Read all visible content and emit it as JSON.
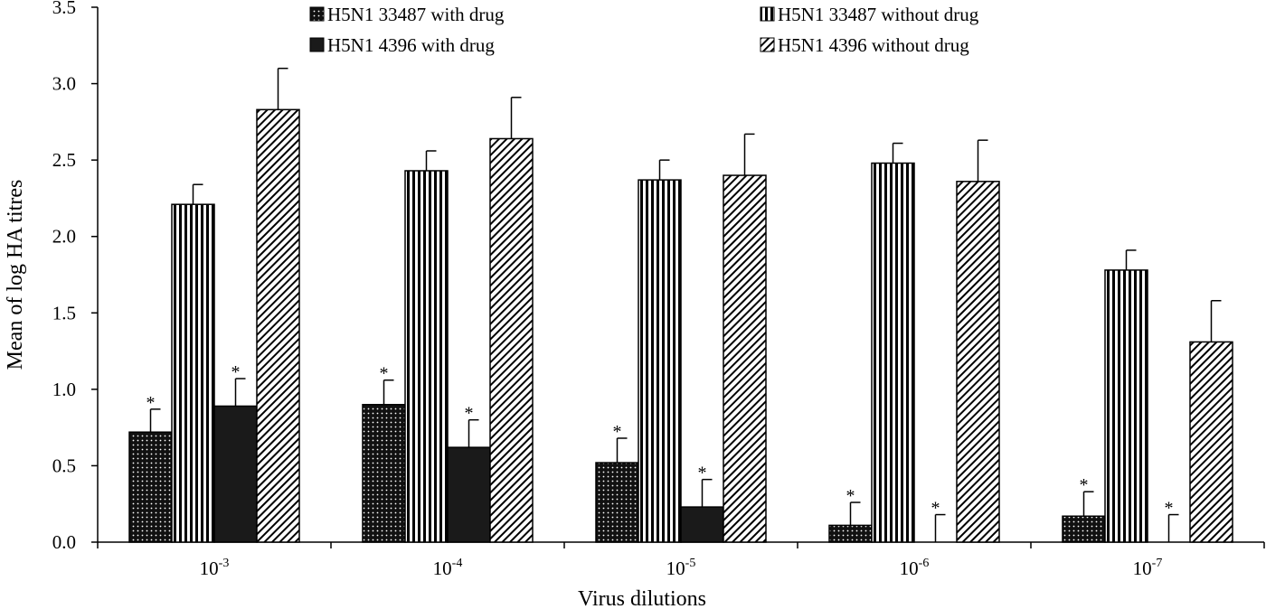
{
  "chart_data": {
    "type": "bar",
    "xlabel": "Virus dilutions",
    "ylabel": "Mean of log HA titres",
    "ylim": [
      0,
      3.5
    ],
    "yticks": [
      "0.0",
      "0.5",
      "1.0",
      "1.5",
      "2.0",
      "2.5",
      "3.0",
      "3.5"
    ],
    "categories": [
      {
        "base": "10",
        "exp": "-3"
      },
      {
        "base": "10",
        "exp": "-4"
      },
      {
        "base": "10",
        "exp": "-5"
      },
      {
        "base": "10",
        "exp": "-6"
      },
      {
        "base": "10",
        "exp": "-7"
      }
    ],
    "legend_position": "top",
    "series": [
      {
        "name": "H5N1 33487 with drug",
        "pattern": "dots",
        "values": [
          0.72,
          0.9,
          0.52,
          0.11,
          0.17
        ],
        "errors": [
          0.15,
          0.16,
          0.16,
          0.15,
          0.16
        ],
        "significant": [
          true,
          true,
          true,
          true,
          true
        ]
      },
      {
        "name": "H5N1 33487 without drug",
        "pattern": "vertical-stripes",
        "values": [
          2.21,
          2.43,
          2.37,
          2.48,
          1.78
        ],
        "errors": [
          0.13,
          0.13,
          0.13,
          0.13,
          0.13
        ],
        "significant": [
          false,
          false,
          false,
          false,
          false
        ]
      },
      {
        "name": "H5N1 4396 with drug",
        "pattern": "solid",
        "values": [
          0.89,
          0.62,
          0.23,
          0.0,
          0.0
        ],
        "errors": [
          0.18,
          0.18,
          0.18,
          0.18,
          0.18
        ],
        "significant": [
          true,
          true,
          true,
          true,
          true
        ]
      },
      {
        "name": "H5N1 4396 without drug",
        "pattern": "diagonal-stripes",
        "values": [
          2.83,
          2.64,
          2.4,
          2.36,
          1.31
        ],
        "errors": [
          0.27,
          0.27,
          0.27,
          0.27,
          0.27
        ],
        "significant": [
          false,
          false,
          false,
          false,
          false
        ]
      }
    ],
    "significance_marker": "*",
    "colors": {
      "ink": "#000000",
      "fill": "#1a1a1a",
      "background": "#ffffff"
    }
  }
}
